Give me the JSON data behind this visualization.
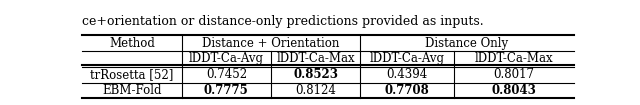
{
  "caption": "ce+orientation or distance-only predictions provided as inputs.",
  "col_group1": "Distance + Orientation",
  "col_group2": "Distance Only",
  "col1": "lDDT-Ca-Avg",
  "col2": "lDDT-Ca-Max",
  "col3": "lDDT-Ca-Avg",
  "col4": "lDDT-Ca-Max",
  "row_header": "Method",
  "rows": [
    {
      "method": "trRosetta [52]",
      "v1": "0.7452",
      "v2": "0.8523",
      "v3": "0.4394",
      "v4": "0.8017",
      "bold": [
        false,
        true,
        false,
        false
      ]
    },
    {
      "method": "EBM-Fold",
      "v1": "0.7775",
      "v2": "0.8124",
      "v3": "0.7708",
      "v4": "0.8043",
      "bold": [
        true,
        false,
        true,
        true
      ]
    }
  ],
  "bg_color": "white",
  "font_size": 8.5,
  "caption_font_size": 9
}
